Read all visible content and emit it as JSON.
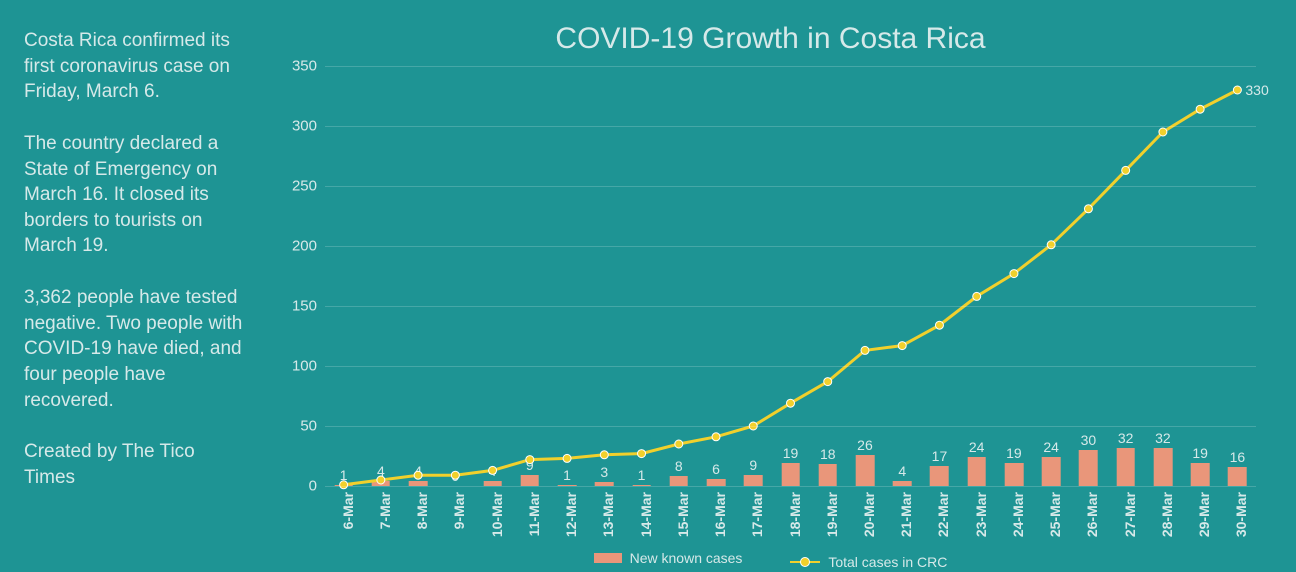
{
  "sidebar": {
    "p1": "Costa Rica confirmed its first coronavirus case on Friday, March 6.",
    "p2": "The country declared a State of Emergency on March 16. It closed its borders to tourists on March 19.",
    "p3": "3,362 people have tested negative. Two people with COVID-19 have died, and four people have recovered.",
    "p4": "Created by The Tico Times"
  },
  "chart": {
    "title": "COVID-19 Growth in Costa Rica",
    "type": "bar+line",
    "background_color": "#1e9494",
    "text_color": "#d6e9e9",
    "title_fontsize": 30,
    "axis_fontsize": 15,
    "categories": [
      "6-Mar",
      "7-Mar",
      "8-Mar",
      "9-Mar",
      "10-Mar",
      "11-Mar",
      "12-Mar",
      "13-Mar",
      "14-Mar",
      "15-Mar",
      "16-Mar",
      "17-Mar",
      "18-Mar",
      "19-Mar",
      "20-Mar",
      "21-Mar",
      "22-Mar",
      "23-Mar",
      "24-Mar",
      "25-Mar",
      "26-Mar",
      "27-Mar",
      "28-Mar",
      "29-Mar",
      "30-Mar"
    ],
    "bars": {
      "label": "New known cases",
      "color": "#e9967a",
      "width_fraction": 0.5,
      "values": [
        1,
        4,
        4,
        0,
        4,
        9,
        1,
        3,
        1,
        8,
        6,
        9,
        19,
        18,
        26,
        4,
        17,
        24,
        19,
        24,
        30,
        32,
        32,
        19,
        16
      ]
    },
    "line": {
      "label": "Total cases in CRC",
      "color": "#f1d02c",
      "marker_border": "#ffffff",
      "marker_radius": 4,
      "line_width": 3,
      "values": [
        1,
        5,
        9,
        9,
        13,
        22,
        23,
        26,
        27,
        35,
        41,
        50,
        69,
        87,
        113,
        117,
        134,
        158,
        177,
        201,
        231,
        263,
        295,
        314,
        330
      ],
      "end_label": "330"
    },
    "y_axis": {
      "min": 0,
      "max": 350,
      "step": 50
    },
    "grid_color": "rgba(255,255,255,0.18)"
  }
}
